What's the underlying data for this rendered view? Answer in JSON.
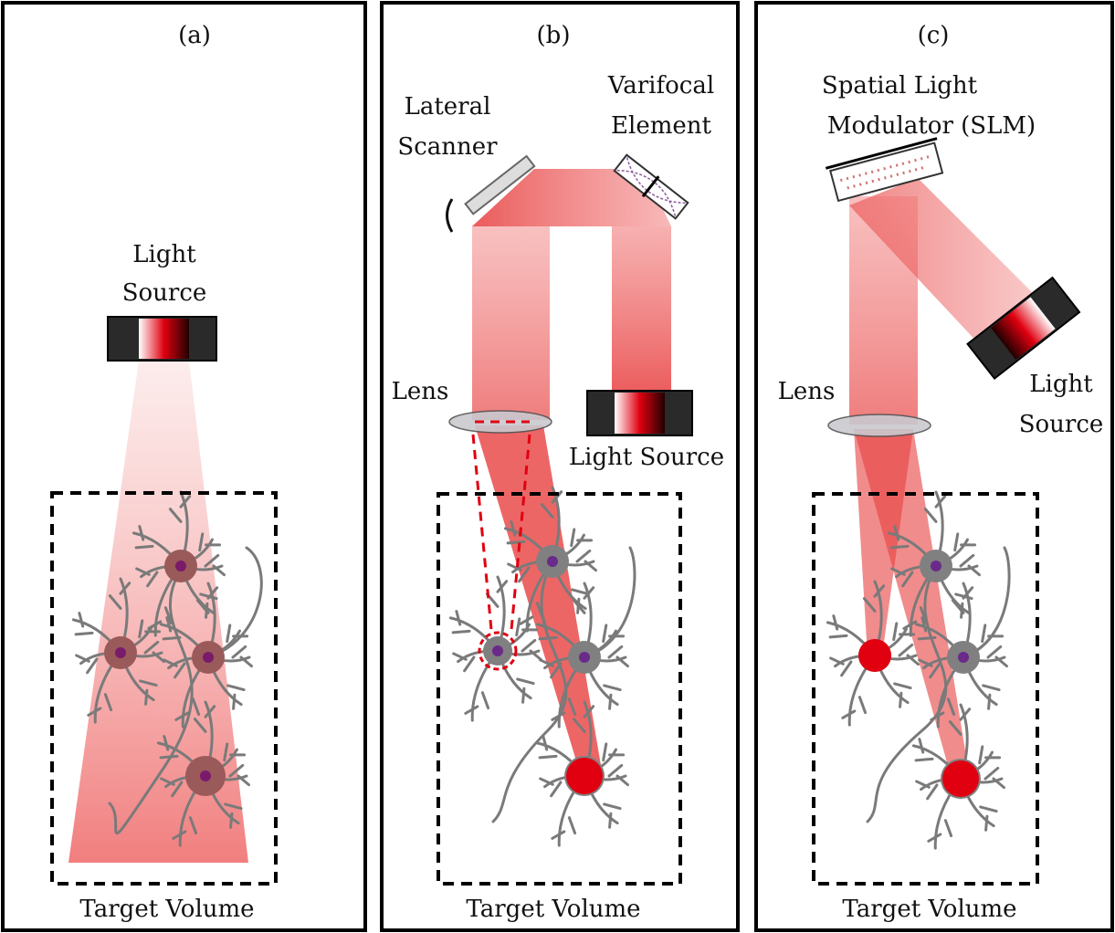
{
  "panels": [
    {
      "tag": "(a)",
      "source": [
        "Light",
        "Source"
      ],
      "volume": "Target Volume"
    },
    {
      "tag": "(b)",
      "scanner": [
        "Lateral",
        "Scanner"
      ],
      "varifocal": [
        "Varifocal",
        "Element"
      ],
      "lens": "Lens",
      "source": "Light Source",
      "volume": "Target Volume"
    },
    {
      "tag": "(c)",
      "slm": [
        "Spatial Light",
        "Modulator (SLM)"
      ],
      "lens": "Lens",
      "source": [
        "Light",
        "Source"
      ],
      "volume": "Target Volume"
    }
  ]
}
